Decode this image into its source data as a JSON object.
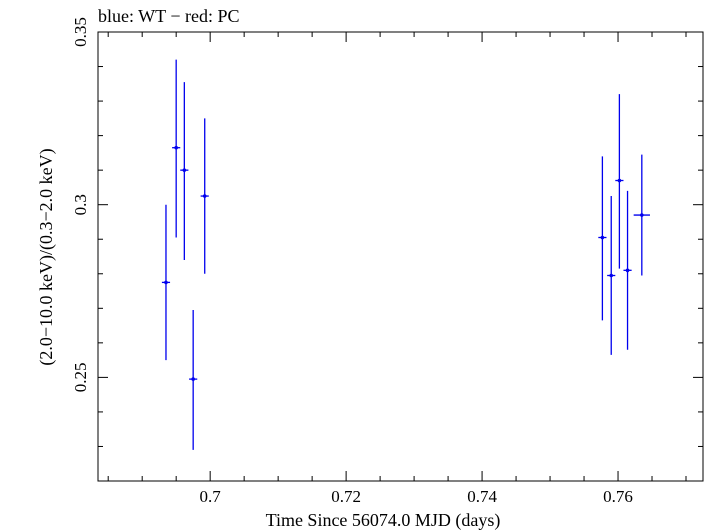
{
  "chart_data": {
    "type": "scatter",
    "title": "blue: WT − red: PC",
    "xlabel": "Time Since 56074.0 MJD (days)",
    "ylabel": "(2.0−10.0 keV)/(0.3−2.0 keV)",
    "xlim": [
      0.6835,
      0.7725
    ],
    "ylim": [
      0.22,
      0.35
    ],
    "x_ticks": [
      {
        "value": 0.7,
        "label": "0.7"
      },
      {
        "value": 0.72,
        "label": "0.72"
      },
      {
        "value": 0.74,
        "label": "0.74"
      },
      {
        "value": 0.76,
        "label": "0.76"
      }
    ],
    "y_ticks": [
      {
        "value": 0.25,
        "label": "0.25"
      },
      {
        "value": 0.3,
        "label": "0.3"
      },
      {
        "value": 0.35,
        "label": "0.35"
      }
    ],
    "series": [
      {
        "name": "WT",
        "color": "#0000ee",
        "points": [
          {
            "x": 0.6935,
            "y": 0.2775,
            "xerr": 0.0006,
            "ylo": 0.255,
            "yhi": 0.3
          },
          {
            "x": 0.695,
            "y": 0.3165,
            "xerr": 0.0006,
            "ylo": 0.2905,
            "yhi": 0.342
          },
          {
            "x": 0.6962,
            "y": 0.31,
            "xerr": 0.0006,
            "ylo": 0.284,
            "yhi": 0.3355
          },
          {
            "x": 0.6975,
            "y": 0.2495,
            "xerr": 0.0006,
            "ylo": 0.229,
            "yhi": 0.2695
          },
          {
            "x": 0.6992,
            "y": 0.3025,
            "xerr": 0.0006,
            "ylo": 0.28,
            "yhi": 0.325
          },
          {
            "x": 0.7577,
            "y": 0.2905,
            "xerr": 0.0006,
            "ylo": 0.2665,
            "yhi": 0.314
          },
          {
            "x": 0.759,
            "y": 0.2795,
            "xerr": 0.0006,
            "ylo": 0.2565,
            "yhi": 0.3025
          },
          {
            "x": 0.7602,
            "y": 0.307,
            "xerr": 0.0006,
            "ylo": 0.2815,
            "yhi": 0.332
          },
          {
            "x": 0.7614,
            "y": 0.281,
            "xerr": 0.0006,
            "ylo": 0.258,
            "yhi": 0.304
          },
          {
            "x": 0.7635,
            "y": 0.297,
            "xerr": 0.0012,
            "ylo": 0.2795,
            "yhi": 0.3145
          }
        ]
      }
    ]
  }
}
